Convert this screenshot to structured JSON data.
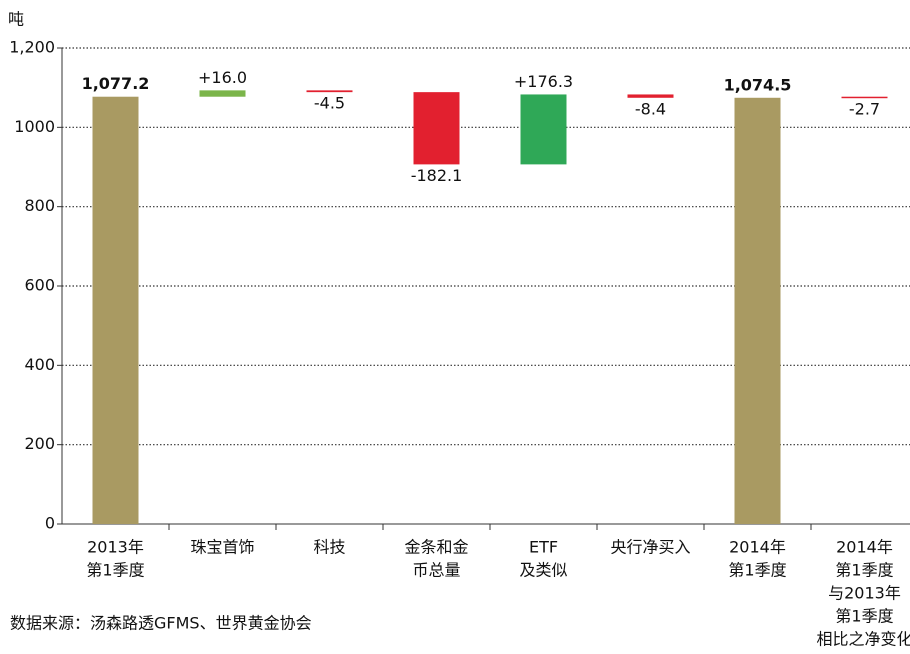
{
  "chart_data": {
    "type": "waterfall",
    "y_label": "吨",
    "source": "数据来源：汤森路透GFMS、世界黄金协会",
    "categories": [
      [
        "2013年",
        "第1季度"
      ],
      [
        "珠宝首饰"
      ],
      [
        "科技"
      ],
      [
        "金条和金",
        "币总量"
      ],
      [
        "ETF",
        "及类似"
      ],
      [
        "央行净买入"
      ],
      [
        "2014年",
        "第1季度"
      ],
      [
        "2014年",
        "第1季度",
        "与2013年",
        "第1季度",
        "相比之净变化"
      ]
    ],
    "values": [
      1077.2,
      16.0,
      -4.5,
      -182.1,
      176.3,
      -8.4,
      1074.5,
      -2.7
    ],
    "value_labels": [
      "1,077.2",
      "+16.0",
      "-4.5",
      "-182.1",
      "+176.3",
      "-8.4",
      "1,074.5",
      "-2.7"
    ],
    "kinds": [
      "total",
      "delta",
      "delta",
      "delta",
      "delta",
      "delta",
      "total",
      "net"
    ],
    "colors": [
      "#a99a62",
      "#7bb54a",
      "#e2202f",
      "#e2202f",
      "#2fa857",
      "#e2202f",
      "#a99a62",
      "#e2202f"
    ],
    "ylim": [
      0,
      1200
    ],
    "yticks": [
      0,
      200,
      400,
      600,
      800,
      1000,
      {
        "value": 1200,
        "label": "1,200"
      }
    ],
    "grid": true
  }
}
